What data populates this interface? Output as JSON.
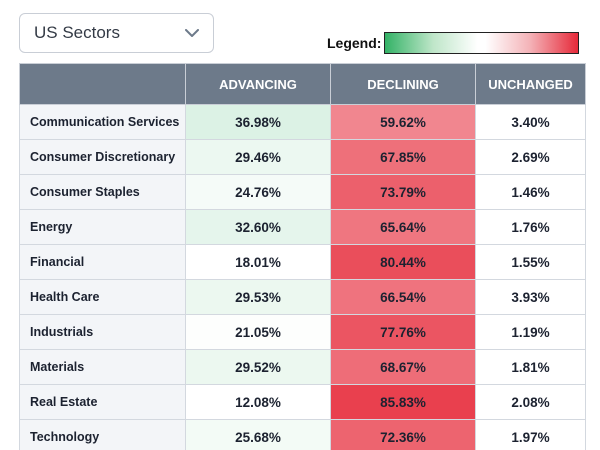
{
  "selector": {
    "value": "US Sectors",
    "chevron_icon": "chevron-down-icon"
  },
  "legend": {
    "label": "Legend:",
    "gradient_colors": [
      "#33b266",
      "#ffffff",
      "#e62a3a"
    ]
  },
  "table": {
    "header": {
      "name": "",
      "advancing": "ADVANCING",
      "declining": "DECLINING",
      "unchanged": "UNCHANGED"
    },
    "colors": {
      "header_bg": "#6d7a8a",
      "advancing_accent": "#33b266",
      "declining_accent": "#e62a3a"
    },
    "rows": [
      {
        "name": "Communication Services",
        "advancing": "36.98%",
        "declining": "59.62%",
        "unchanged": "3.40%"
      },
      {
        "name": "Consumer Discretionary",
        "advancing": "29.46%",
        "declining": "67.85%",
        "unchanged": "2.69%"
      },
      {
        "name": "Consumer Staples",
        "advancing": "24.76%",
        "declining": "73.79%",
        "unchanged": "1.46%"
      },
      {
        "name": "Energy",
        "advancing": "32.60%",
        "declining": "65.64%",
        "unchanged": "1.76%"
      },
      {
        "name": "Financial",
        "advancing": "18.01%",
        "declining": "80.44%",
        "unchanged": "1.55%"
      },
      {
        "name": "Health Care",
        "advancing": "29.53%",
        "declining": "66.54%",
        "unchanged": "3.93%"
      },
      {
        "name": "Industrials",
        "advancing": "21.05%",
        "declining": "77.76%",
        "unchanged": "1.19%"
      },
      {
        "name": "Materials",
        "advancing": "29.52%",
        "declining": "68.67%",
        "unchanged": "1.81%"
      },
      {
        "name": "Real Estate",
        "advancing": "12.08%",
        "declining": "85.83%",
        "unchanged": "2.08%"
      },
      {
        "name": "Technology",
        "advancing": "25.68%",
        "declining": "72.36%",
        "unchanged": "1.97%"
      }
    ]
  }
}
